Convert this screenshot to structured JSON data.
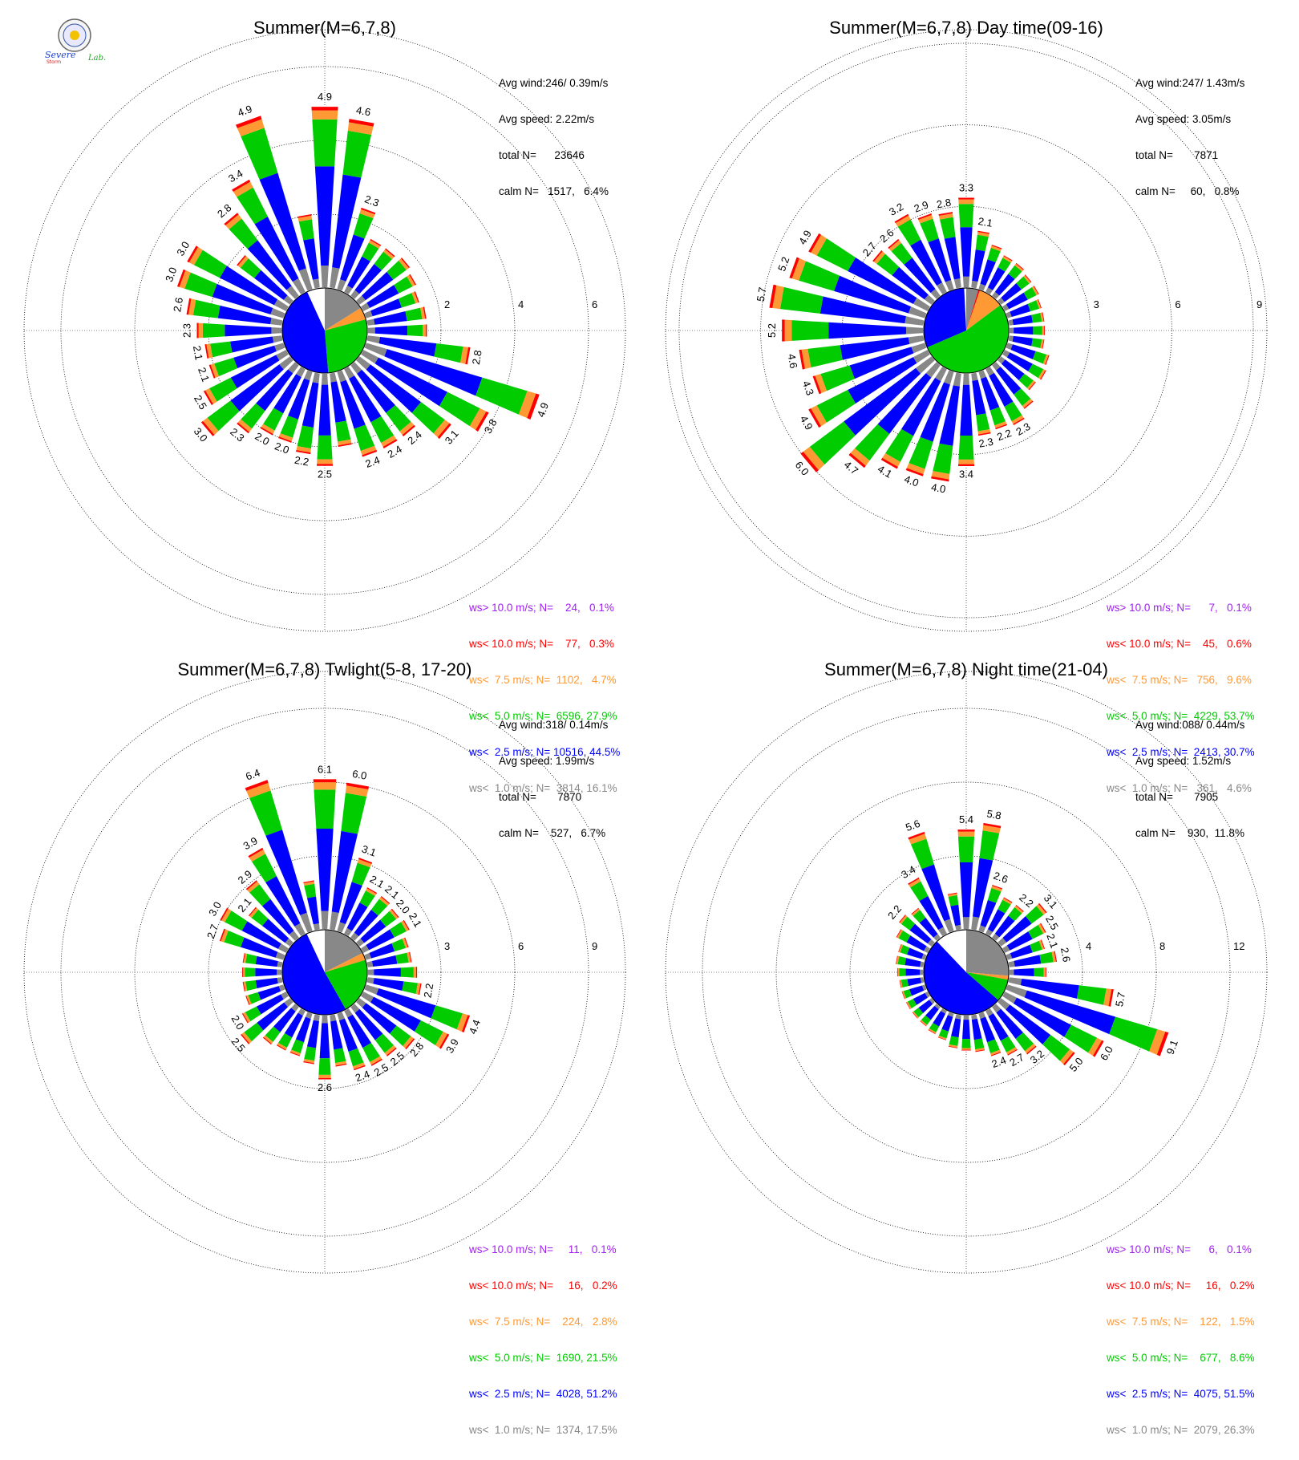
{
  "logo": {
    "text_top": "Severe",
    "text_bottom": "Storm",
    "lab": "Lab."
  },
  "chart_data": [
    {
      "type": "windrose",
      "title": "Summer(M=6,7,8)",
      "stats": [
        "Avg wind:246/ 0.39m/s",
        "Avg speed: 2.22m/s",
        "total N=      23646",
        "calm N=   1517,   6.4%"
      ],
      "rmax": 7,
      "rings": [
        2,
        4,
        6
      ],
      "ring_labels": [
        "2",
        "4",
        "6"
      ],
      "center_pie": [
        {
          "bin": "ws< 1.0",
          "pct": 16.1
        },
        {
          "bin": "ws< 7.5",
          "pct": 4.7
        },
        {
          "bin": "ws< 5.0",
          "pct": 27.9
        },
        {
          "bin": "ws< 2.5",
          "pct": 44.5
        }
      ],
      "directions_deg_step": 10,
      "petals": [
        {
          "dir": 0,
          "total": 4.9,
          "label": "4.9"
        },
        {
          "dir": 10,
          "total": 4.6,
          "label": "4.6"
        },
        {
          "dir": 20,
          "total": 2.3,
          "label": "2.3"
        },
        {
          "dir": 30,
          "total": 1.6
        },
        {
          "dir": 40,
          "total": 1.6
        },
        {
          "dir": 50,
          "total": 1.7
        },
        {
          "dir": 60,
          "total": 1.6
        },
        {
          "dir": 70,
          "total": 1.5
        },
        {
          "dir": 80,
          "total": 1.6
        },
        {
          "dir": 90,
          "total": 1.6
        },
        {
          "dir": 100,
          "total": 2.8,
          "label": "2.8"
        },
        {
          "dir": 110,
          "total": 4.9,
          "label": "4.9"
        },
        {
          "dir": 120,
          "total": 3.8,
          "label": "3.8"
        },
        {
          "dir": 130,
          "total": 3.1,
          "label": "3.1"
        },
        {
          "dir": 140,
          "total": 2.4,
          "label": "2.4"
        },
        {
          "dir": 150,
          "total": 2.4,
          "label": "2.4"
        },
        {
          "dir": 160,
          "total": 2.4,
          "label": "2.4"
        },
        {
          "dir": 170,
          "total": 2.0
        },
        {
          "dir": 180,
          "total": 2.5,
          "label": "2.5"
        },
        {
          "dir": 190,
          "total": 2.2,
          "label": "2.2"
        },
        {
          "dir": 200,
          "total": 2.0,
          "label": "2.0"
        },
        {
          "dir": 210,
          "total": 2.0,
          "label": "2.0"
        },
        {
          "dir": 220,
          "total": 2.3,
          "label": "2.3"
        },
        {
          "dir": 230,
          "total": 3.0,
          "label": "3.0"
        },
        {
          "dir": 240,
          "total": 2.5,
          "label": "2.5"
        },
        {
          "dir": 250,
          "total": 2.1,
          "label": "2.1"
        },
        {
          "dir": 260,
          "total": 2.1,
          "label": "2.1"
        },
        {
          "dir": 270,
          "total": 2.3,
          "label": "2.3"
        },
        {
          "dir": 280,
          "total": 2.6,
          "label": "2.6"
        },
        {
          "dir": 290,
          "total": 3.0,
          "label": "3.0"
        },
        {
          "dir": 300,
          "total": 3.0,
          "label": "3.0"
        },
        {
          "dir": 310,
          "total": 1.8
        },
        {
          "dir": 320,
          "total": 2.8,
          "label": "2.8"
        },
        {
          "dir": 330,
          "total": 3.4,
          "label": "3.4"
        },
        {
          "dir": 340,
          "total": 4.9,
          "label": "4.9"
        },
        {
          "dir": 350,
          "total": 2.0
        }
      ],
      "legend": [
        {
          "text": "ws> 10.0 m/s; N=    24,   0.1%",
          "color": "#a020f0"
        },
        {
          "text": "ws< 10.0 m/s; N=    77,   0.3%",
          "color": "#ff0000"
        },
        {
          "text": "ws<  7.5 m/s; N=  1102,   4.7%",
          "color": "#ff9933"
        },
        {
          "text": "ws<  5.0 m/s; N=  6596, 27.9%",
          "color": "#00cc00"
        },
        {
          "text": "ws<  2.5 m/s; N= 10516, 44.5%",
          "color": "#0000ff"
        },
        {
          "text": "ws<  1.0 m/s; N=  3814, 16.1%",
          "color": "#888888"
        }
      ]
    },
    {
      "type": "windrose",
      "title": "Summer(M=6,7,8) Day time(09-16)",
      "stats": [
        "Avg wind:247/ 1.43m/s",
        "Avg speed: 3.05m/s",
        "total N=       7871",
        "calm N=     60,   0.8%"
      ],
      "rmax": 9.5,
      "rings": [
        3,
        6,
        9
      ],
      "ring_labels": [
        "3",
        "6",
        "9"
      ],
      "center_pie": [
        {
          "bin": "ws< 1.0",
          "pct": 4.6
        },
        {
          "bin": "ws< 10.0",
          "pct": 0.6
        },
        {
          "bin": "ws< 7.5",
          "pct": 9.6
        },
        {
          "bin": "ws< 5.0",
          "pct": 53.7
        },
        {
          "bin": "ws< 2.5",
          "pct": 30.7
        }
      ],
      "directions_deg_step": 10,
      "petals": [
        {
          "dir": 0,
          "total": 3.3,
          "label": "3.3"
        },
        {
          "dir": 10,
          "total": 2.1,
          "label": "2.1"
        },
        {
          "dir": 20,
          "total": 1.7
        },
        {
          "dir": 30,
          "total": 1.5
        },
        {
          "dir": 40,
          "total": 1.5
        },
        {
          "dir": 50,
          "total": 1.4
        },
        {
          "dir": 60,
          "total": 1.4
        },
        {
          "dir": 70,
          "total": 1.3
        },
        {
          "dir": 80,
          "total": 1.3
        },
        {
          "dir": 90,
          "total": 1.3
        },
        {
          "dir": 100,
          "total": 1.3
        },
        {
          "dir": 110,
          "total": 1.6
        },
        {
          "dir": 120,
          "total": 1.7
        },
        {
          "dir": 130,
          "total": 1.6
        },
        {
          "dir": 140,
          "total": 2.0
        },
        {
          "dir": 150,
          "total": 2.3,
          "label": "2.3"
        },
        {
          "dir": 160,
          "total": 2.2,
          "label": "2.2"
        },
        {
          "dir": 170,
          "total": 2.3,
          "label": "2.3"
        },
        {
          "dir": 180,
          "total": 3.4,
          "label": "3.4"
        },
        {
          "dir": 190,
          "total": 4.0,
          "label": "4.0"
        },
        {
          "dir": 200,
          "total": 4.0,
          "label": "4.0"
        },
        {
          "dir": 210,
          "total": 4.1,
          "label": "4.1"
        },
        {
          "dir": 220,
          "total": 4.7,
          "label": "4.7"
        },
        {
          "dir": 230,
          "total": 6.0,
          "label": "6.0"
        },
        {
          "dir": 240,
          "total": 4.9,
          "label": "4.9"
        },
        {
          "dir": 250,
          "total": 4.3,
          "label": "4.3"
        },
        {
          "dir": 260,
          "total": 4.6,
          "label": "4.6"
        },
        {
          "dir": 270,
          "total": 5.2,
          "label": "5.2"
        },
        {
          "dir": 280,
          "total": 5.7,
          "label": "5.7"
        },
        {
          "dir": 290,
          "total": 5.2,
          "label": "5.2"
        },
        {
          "dir": 300,
          "total": 4.9,
          "label": "4.9"
        },
        {
          "dir": 310,
          "total": 2.7,
          "label": "2.7"
        },
        {
          "dir": 320,
          "total": 2.6,
          "label": "2.6"
        },
        {
          "dir": 330,
          "total": 3.2,
          "label": "3.2"
        },
        {
          "dir": 340,
          "total": 2.9,
          "label": "2.9"
        },
        {
          "dir": 350,
          "total": 2.8,
          "label": "2.8"
        }
      ],
      "legend": [
        {
          "text": "ws> 10.0 m/s; N=      7,   0.1%",
          "color": "#a020f0"
        },
        {
          "text": "ws< 10.0 m/s; N=    45,   0.6%",
          "color": "#ff0000"
        },
        {
          "text": "ws<  7.5 m/s; N=   756,   9.6%",
          "color": "#ff9933"
        },
        {
          "text": "ws<  5.0 m/s; N=  4229, 53.7%",
          "color": "#00cc00"
        },
        {
          "text": "ws<  2.5 m/s; N=  2413, 30.7%",
          "color": "#0000ff"
        },
        {
          "text": "ws<  1.0 m/s; N=   361,   4.6%",
          "color": "#888888"
        }
      ]
    },
    {
      "type": "windrose",
      "title": "Summer(M=6,7,8) Twlight(5-8, 17-20)",
      "stats": [
        "Avg wind:318/ 0.14m/s",
        "Avg speed: 1.99m/s",
        "total N=       7870",
        "calm N=    527,   6.7%"
      ],
      "rmax": 10.5,
      "rings": [
        3,
        6,
        9
      ],
      "ring_labels": [
        "3",
        "6",
        "9"
      ],
      "center_pie": [
        {
          "bin": "ws< 1.0",
          "pct": 17.5
        },
        {
          "bin": "ws< 7.5",
          "pct": 2.8
        },
        {
          "bin": "ws< 5.0",
          "pct": 21.5
        },
        {
          "bin": "ws< 2.5",
          "pct": 51.2
        }
      ],
      "directions_deg_step": 10,
      "petals": [
        {
          "dir": 0,
          "total": 6.1,
          "label": "6.1"
        },
        {
          "dir": 10,
          "total": 6.0,
          "label": "6.0"
        },
        {
          "dir": 20,
          "total": 3.1,
          "label": "3.1"
        },
        {
          "dir": 30,
          "total": 2.1,
          "label": "2.1"
        },
        {
          "dir": 40,
          "total": 2.1,
          "label": "2.1"
        },
        {
          "dir": 50,
          "total": 2.0,
          "label": "2.0"
        },
        {
          "dir": 60,
          "total": 2.1,
          "label": "2.1"
        },
        {
          "dir": 70,
          "total": 1.8
        },
        {
          "dir": 80,
          "total": 1.8
        },
        {
          "dir": 90,
          "total": 2.0
        },
        {
          "dir": 100,
          "total": 2.2,
          "label": "2.2"
        },
        {
          "dir": 110,
          "total": 4.4,
          "label": "4.4"
        },
        {
          "dir": 120,
          "total": 3.9,
          "label": "3.9"
        },
        {
          "dir": 130,
          "total": 2.8,
          "label": "2.8"
        },
        {
          "dir": 140,
          "total": 2.5,
          "label": "2.5"
        },
        {
          "dir": 150,
          "total": 2.5,
          "label": "2.5"
        },
        {
          "dir": 160,
          "total": 2.4,
          "label": "2.4"
        },
        {
          "dir": 170,
          "total": 2.1
        },
        {
          "dir": 180,
          "total": 2.6,
          "label": "2.6"
        },
        {
          "dir": 190,
          "total": 2.0
        },
        {
          "dir": 200,
          "total": 1.8
        },
        {
          "dir": 210,
          "total": 1.8
        },
        {
          "dir": 220,
          "total": 1.9
        },
        {
          "dir": 230,
          "total": 2.5,
          "label": "2.5"
        },
        {
          "dir": 240,
          "total": 2.0,
          "label": "2.0"
        },
        {
          "dir": 250,
          "total": 1.6
        },
        {
          "dir": 260,
          "total": 1.6
        },
        {
          "dir": 270,
          "total": 1.6
        },
        {
          "dir": 280,
          "total": 1.6
        },
        {
          "dir": 290,
          "total": 2.7,
          "label": "2.7"
        },
        {
          "dir": 300,
          "total": 3.0,
          "label": "3.0"
        },
        {
          "dir": 310,
          "total": 2.1,
          "label": "2.1"
        },
        {
          "dir": 320,
          "total": 2.9,
          "label": "2.9"
        },
        {
          "dir": 330,
          "total": 3.9,
          "label": "3.9"
        },
        {
          "dir": 340,
          "total": 6.4,
          "label": "6.4"
        },
        {
          "dir": 350,
          "total": 2.0
        }
      ],
      "legend": [
        {
          "text": "ws> 10.0 m/s; N=     11,   0.1%",
          "color": "#a020f0"
        },
        {
          "text": "ws< 10.0 m/s; N=     16,   0.2%",
          "color": "#ff0000"
        },
        {
          "text": "ws<  7.5 m/s; N=    224,   2.8%",
          "color": "#ff9933"
        },
        {
          "text": "ws<  5.0 m/s; N=  1690, 21.5%",
          "color": "#00cc00"
        },
        {
          "text": "ws<  2.5 m/s; N=  4028, 51.2%",
          "color": "#0000ff"
        },
        {
          "text": "ws<  1.0 m/s; N=  1374, 17.5%",
          "color": "#888888"
        }
      ]
    },
    {
      "type": "windrose",
      "title": "Summer(M=6,7,8) Night time(21-04)",
      "stats": [
        "Avg wind:088/ 0.44m/s",
        "Avg speed: 1.52m/s",
        "total N=       7905",
        "calm N=    930,  11.8%"
      ],
      "rmax": 14,
      "rings": [
        4,
        8,
        12
      ],
      "ring_labels": [
        "4",
        "8",
        "12"
      ],
      "center_pie": [
        {
          "bin": "ws< 1.0",
          "pct": 26.3
        },
        {
          "bin": "ws< 7.5",
          "pct": 1.5
        },
        {
          "bin": "ws< 5.0",
          "pct": 8.6
        },
        {
          "bin": "ws< 2.5",
          "pct": 51.5
        }
      ],
      "directions_deg_step": 10,
      "petals": [
        {
          "dir": 0,
          "total": 5.4,
          "label": "5.4"
        },
        {
          "dir": 10,
          "total": 5.8,
          "label": "5.8"
        },
        {
          "dir": 20,
          "total": 2.6,
          "label": "2.6"
        },
        {
          "dir": 30,
          "total": 2.2
        },
        {
          "dir": 40,
          "total": 2.2,
          "label": "2.2"
        },
        {
          "dir": 50,
          "total": 3.1,
          "label": "3.1"
        },
        {
          "dir": 60,
          "total": 2.5,
          "label": "2.5"
        },
        {
          "dir": 70,
          "total": 2.1,
          "label": "2.1"
        },
        {
          "dir": 80,
          "total": 2.6,
          "label": "2.6"
        },
        {
          "dir": 90,
          "total": 2.0
        },
        {
          "dir": 100,
          "total": 5.7,
          "label": "5.7"
        },
        {
          "dir": 110,
          "total": 9.1,
          "label": "9.1"
        },
        {
          "dir": 120,
          "total": 6.0,
          "label": "6.0"
        },
        {
          "dir": 130,
          "total": 5.0,
          "label": "5.0"
        },
        {
          "dir": 140,
          "total": 3.2,
          "label": "3.2"
        },
        {
          "dir": 150,
          "total": 2.7,
          "label": "2.7"
        },
        {
          "dir": 160,
          "total": 2.4,
          "label": "2.4"
        },
        {
          "dir": 170,
          "total": 2.0
        },
        {
          "dir": 180,
          "total": 1.9
        },
        {
          "dir": 190,
          "total": 1.8
        },
        {
          "dir": 200,
          "total": 1.5
        },
        {
          "dir": 210,
          "total": 1.4
        },
        {
          "dir": 220,
          "total": 1.3
        },
        {
          "dir": 230,
          "total": 1.3
        },
        {
          "dir": 240,
          "total": 1.3
        },
        {
          "dir": 250,
          "total": 1.3
        },
        {
          "dir": 260,
          "total": 1.3
        },
        {
          "dir": 270,
          "total": 1.4
        },
        {
          "dir": 280,
          "total": 1.5
        },
        {
          "dir": 290,
          "total": 1.5
        },
        {
          "dir": 300,
          "total": 1.9
        },
        {
          "dir": 310,
          "total": 2.2,
          "label": "2.2"
        },
        {
          "dir": 320,
          "total": 2.0
        },
        {
          "dir": 330,
          "total": 3.4,
          "label": "3.4"
        },
        {
          "dir": 340,
          "total": 5.6,
          "label": "5.6"
        },
        {
          "dir": 350,
          "total": 2.0
        }
      ],
      "legend": [
        {
          "text": "ws> 10.0 m/s; N=      6,   0.1%",
          "color": "#a020f0"
        },
        {
          "text": "ws< 10.0 m/s; N=     16,   0.2%",
          "color": "#ff0000"
        },
        {
          "text": "ws<  7.5 m/s; N=    122,   1.5%",
          "color": "#ff9933"
        },
        {
          "text": "ws<  5.0 m/s; N=    677,   8.6%",
          "color": "#00cc00"
        },
        {
          "text": "ws<  2.5 m/s; N=  4075, 51.5%",
          "color": "#0000ff"
        },
        {
          "text": "ws<  1.0 m/s; N=  2079, 26.3%",
          "color": "#888888"
        }
      ]
    }
  ]
}
